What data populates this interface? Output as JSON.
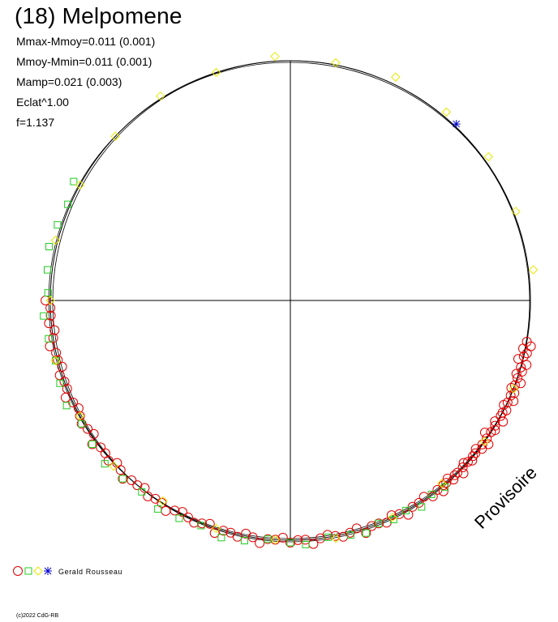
{
  "title": "(18) Melpomene",
  "stats": [
    "Mmax-Mmoy=0.011 (0.001)",
    "Mmoy-Mmin=0.011 (0.001)",
    "Mamp=0.021 (0.003)",
    "Eclat^1.00",
    "f=1.137"
  ],
  "watermark": "Provisoire",
  "legend_label": "Gerald Rousseau",
  "copyright": "(c)2022 CdG-RB",
  "colors": {
    "red": "#e00000",
    "green": "#22cc22",
    "yellow": "#e8e800",
    "blue": "#0000cc",
    "axis": "#000000"
  },
  "chart_data": {
    "type": "scatter",
    "title": "(18) Melpomene",
    "polar": true,
    "radius": 1.0,
    "series": [
      {
        "symbol": "circle",
        "color": "#e00000",
        "phases": [
          0.555,
          0.56,
          0.565,
          0.57,
          0.575,
          0.58,
          0.585,
          0.59,
          0.595,
          0.6,
          0.605,
          0.61,
          0.615,
          0.62,
          0.625,
          0.63,
          0.635,
          0.64,
          0.645,
          0.65,
          0.655,
          0.66,
          0.665,
          0.67,
          0.675,
          0.68,
          0.685,
          0.69,
          0.695,
          0.7,
          0.705,
          0.71,
          0.715,
          0.72,
          0.725,
          0.73,
          0.735,
          0.74,
          0.745,
          0.75,
          0.755,
          0.76,
          0.765,
          0.77,
          0.775,
          0.78,
          0.785,
          0.79,
          0.8,
          0.81,
          0.82,
          0.83,
          0.84,
          0.85,
          0.86,
          0.87,
          0.88,
          0.89,
          0.9,
          0.91,
          0.92,
          0.93,
          0.94,
          0.95,
          0.96,
          0.97,
          0.98,
          0.99,
          1.0,
          1.01,
          1.02,
          1.03,
          1.04,
          1.05,
          1.06,
          1.07,
          1.08,
          1.09,
          1.1,
          1.11,
          1.12,
          1.13,
          1.14,
          1.15,
          1.16,
          1.17,
          1.18,
          1.19,
          1.2,
          1.21,
          1.22,
          1.23,
          1.24,
          1.25,
          1.26,
          1.27,
          1.28,
          1.29,
          1.3,
          1.31,
          1.32,
          1.33,
          1.34,
          1.35,
          1.36,
          1.37,
          1.38,
          1.39,
          1.4,
          1.41,
          1.42,
          1.43,
          1.44,
          1.45,
          1.46,
          1.47,
          1.48,
          1.49,
          1.5
        ],
        "radii": [
          1.0,
          1.02,
          0.99,
          1.01,
          1.0,
          0.98,
          1.02,
          1.0,
          1.01,
          0.99,
          1.0,
          1.02,
          1.0,
          0.99,
          1.01,
          1.0,
          1.02,
          1.0,
          0.99,
          1.01,
          1.0,
          1.0,
          1.02,
          0.99,
          1.0,
          1.01,
          1.0,
          0.98,
          1.0,
          1.02,
          1.0,
          1.01,
          0.99,
          1.0,
          1.0,
          1.01,
          1.0,
          0.99,
          1.0,
          1.02,
          1.0,
          1.0,
          1.01,
          0.99,
          1.0,
          1.0,
          1.02,
          1.0,
          1.01,
          0.99,
          1.0,
          1.0,
          1.02,
          1.0,
          0.99,
          1.01,
          1.0,
          1.0,
          1.02,
          0.99,
          1.0,
          1.01,
          1.0,
          0.99,
          1.0,
          1.02,
          1.0,
          1.0,
          1.01,
          0.99,
          1.0,
          1.0,
          1.02,
          1.0,
          0.99,
          1.01,
          1.0,
          1.0,
          1.02,
          0.99,
          1.0,
          1.01,
          1.0,
          0.99,
          1.0,
          1.02,
          1.0,
          1.0,
          1.01,
          0.99,
          1.0,
          1.0,
          1.02,
          1.0,
          0.99,
          1.01,
          1.0,
          1.0,
          1.02,
          0.99,
          1.0,
          1.01,
          1.0,
          0.99,
          1.0,
          1.02,
          1.0,
          1.0,
          1.01,
          0.99,
          1.0,
          1.0,
          1.02,
          1.0,
          0.99,
          1.01,
          1.0,
          1.0,
          1.02
        ]
      },
      {
        "symbol": "square",
        "color": "#22cc22",
        "phases": [
          0.78,
          0.8,
          0.82,
          0.84,
          0.86,
          0.88,
          0.9,
          0.92,
          0.95,
          0.98,
          1.0,
          1.03,
          1.06,
          1.09,
          1.12,
          1.15,
          1.18,
          1.21,
          1.24,
          1.27,
          1.3,
          1.33,
          1.36,
          1.39,
          1.42,
          1.45,
          1.48,
          1.51,
          1.54,
          1.57,
          1.6,
          1.63,
          1.66
        ],
        "radii": [
          1.01,
          1.0,
          1.02,
          1.0,
          1.01,
          1.0,
          1.02,
          1.01,
          1.0,
          1.02,
          1.01,
          1.0,
          1.02,
          1.03,
          1.01,
          1.02,
          1.03,
          1.01,
          1.02,
          1.03,
          1.02,
          1.01,
          1.03,
          1.02,
          1.01,
          1.02,
          1.03,
          1.01,
          1.02,
          1.03,
          1.02,
          1.01,
          1.03
        ]
      },
      {
        "symbol": "diamond",
        "color": "#e8e800",
        "phases": [
          0.62,
          0.7,
          0.78,
          0.86,
          0.94,
          1.02,
          1.1,
          1.18,
          1.26,
          1.34,
          1.42,
          1.5,
          1.58,
          1.66,
          1.74,
          1.82,
          1.9,
          1.98,
          2.06,
          2.14,
          2.22,
          2.3,
          2.38,
          2.46
        ],
        "radii": [
          1.0,
          1.0,
          0.99,
          1.0,
          1.01,
          1.0,
          1.0,
          0.99,
          1.01,
          1.0,
          1.01,
          1.0,
          1.01,
          1.0,
          1.0,
          1.01,
          1.0,
          1.02,
          1.01,
          1.03,
          1.02,
          1.02,
          1.01,
          1.02
        ]
      },
      {
        "symbol": "star",
        "color": "#0000cc",
        "phases": [
          0.24
        ],
        "radii": [
          1.01
        ]
      }
    ]
  }
}
